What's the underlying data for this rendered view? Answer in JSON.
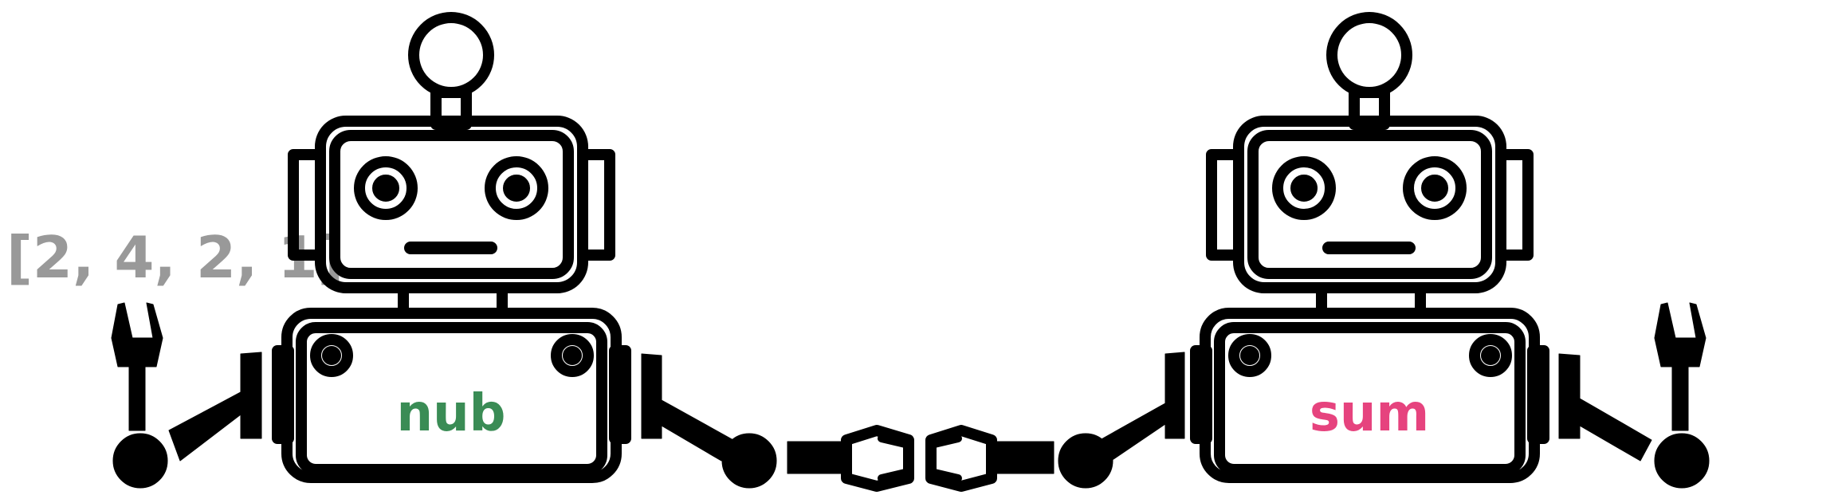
{
  "input_list": "[2, 4, 2, 1]",
  "robots": [
    {
      "label": "nub",
      "label_color": "#3a8c55"
    },
    {
      "label": "sum",
      "label_color": "#e6437e"
    }
  ],
  "colors": {
    "outline": "#000000",
    "background": "#ffffff",
    "input_text": "#999999"
  }
}
